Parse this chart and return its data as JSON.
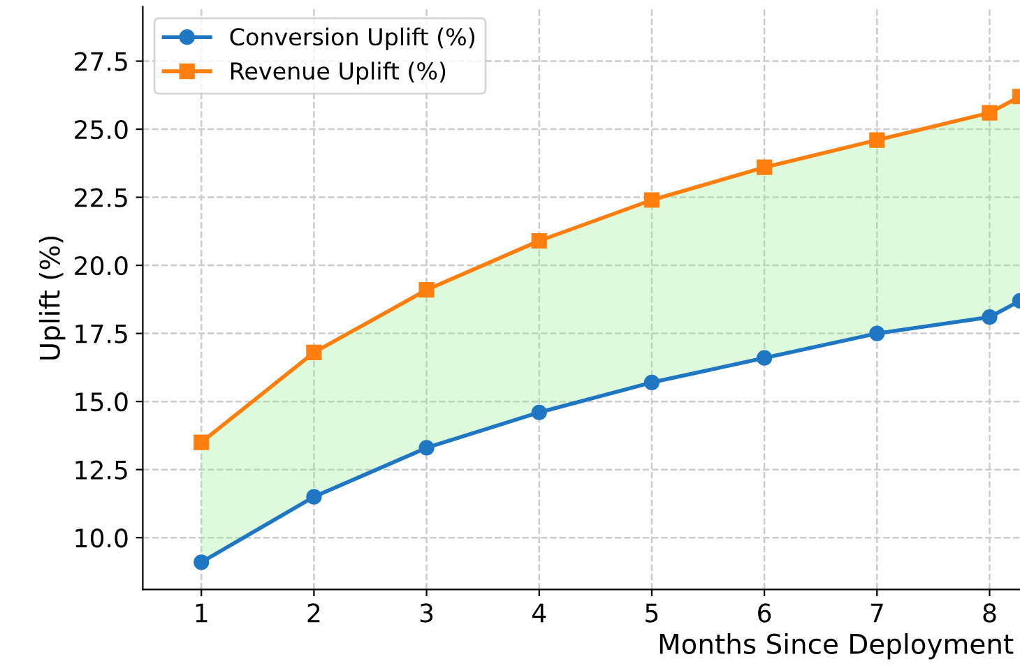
{
  "chart_data": {
    "type": "line",
    "xlabel": "Months Since Deployment",
    "ylabel": "Uplift (%)",
    "x": [
      1,
      2,
      3,
      4,
      5,
      6,
      7,
      8,
      8.27
    ],
    "series": [
      {
        "name": "Conversion Uplift (%)",
        "color": "#1f77c4",
        "marker": "circle",
        "values": [
          9.1,
          11.5,
          13.3,
          14.6,
          15.7,
          16.6,
          17.5,
          18.1,
          18.7
        ]
      },
      {
        "name": "Revenue Uplift (%)",
        "color": "#ff7f0e",
        "marker": "square",
        "values": [
          13.5,
          16.8,
          19.1,
          20.9,
          22.4,
          23.6,
          24.6,
          25.6,
          26.2
        ],
        "lower": [
          9.1,
          11.5,
          13.3,
          14.6,
          15.7,
          16.6,
          17.5,
          18.1,
          18.7
        ],
        "upper": [
          13.5,
          16.8,
          19.1,
          20.9,
          22.4,
          23.6,
          24.6,
          25.6,
          26.2
        ]
      }
    ],
    "xlim": [
      0.48,
      8.27
    ],
    "xticks": [
      1,
      2,
      3,
      4,
      5,
      6,
      7,
      8
    ],
    "ylim": [
      8.1,
      29.5
    ],
    "yticks": [
      {
        "value": 10,
        "label": "10.0"
      },
      12.5,
      {
        "value": 15,
        "label": "15.0"
      },
      17.5,
      {
        "value": 20,
        "label": "20.0"
      },
      22.5,
      {
        "value": 25,
        "label": "25.0"
      },
      27.5
    ],
    "grid": true,
    "legend": "top left",
    "line_style": "solid"
  }
}
